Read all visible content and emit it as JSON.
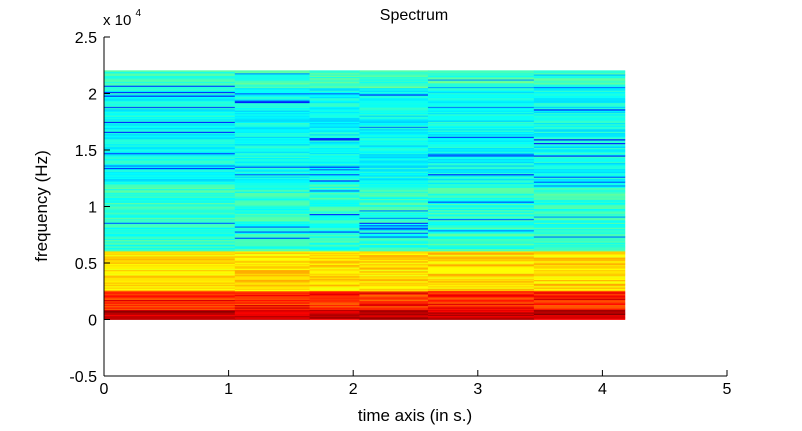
{
  "chart_data": {
    "type": "heatmap",
    "title": "Spectrum",
    "xlabel": "time axis (in s.)",
    "ylabel": "frequency (Hz)",
    "xlim": [
      0,
      5
    ],
    "ylim": [
      -5000,
      25000
    ],
    "x_ticks": [
      0,
      1,
      2,
      3,
      4,
      5
    ],
    "y_ticks": [
      -5000,
      0,
      5000,
      10000,
      15000,
      20000,
      25000
    ],
    "x_tick_labels": [
      "0",
      "1",
      "2",
      "3",
      "4",
      "5"
    ],
    "y_tick_labels": [
      "-0.5",
      "0",
      "0.5",
      "1",
      "1.5",
      "2",
      "2.5"
    ],
    "y_exponent_label": "x 10",
    "y_exponent_power": "4",
    "grid": false,
    "colormap": "jet",
    "frequency_range_hz": [
      0,
      22050
    ],
    "time_segments": [
      {
        "start": 0.0,
        "end": 1.05
      },
      {
        "start": 1.05,
        "end": 1.65
      },
      {
        "start": 1.65,
        "end": 2.05
      },
      {
        "start": 2.05,
        "end": 2.6
      },
      {
        "start": 2.6,
        "end": 3.45
      },
      {
        "start": 3.45,
        "end": 4.18
      }
    ],
    "frequency_bands": [
      {
        "from": 0,
        "to": 800,
        "level": 0.92
      },
      {
        "from": 800,
        "to": 2500,
        "level": 0.82
      },
      {
        "from": 2500,
        "to": 6000,
        "level": 0.66
      },
      {
        "from": 6000,
        "to": 12000,
        "level": 0.42
      },
      {
        "from": 12000,
        "to": 20500,
        "level": 0.38
      },
      {
        "from": 20500,
        "to": 22050,
        "level": 0.44
      }
    ]
  }
}
